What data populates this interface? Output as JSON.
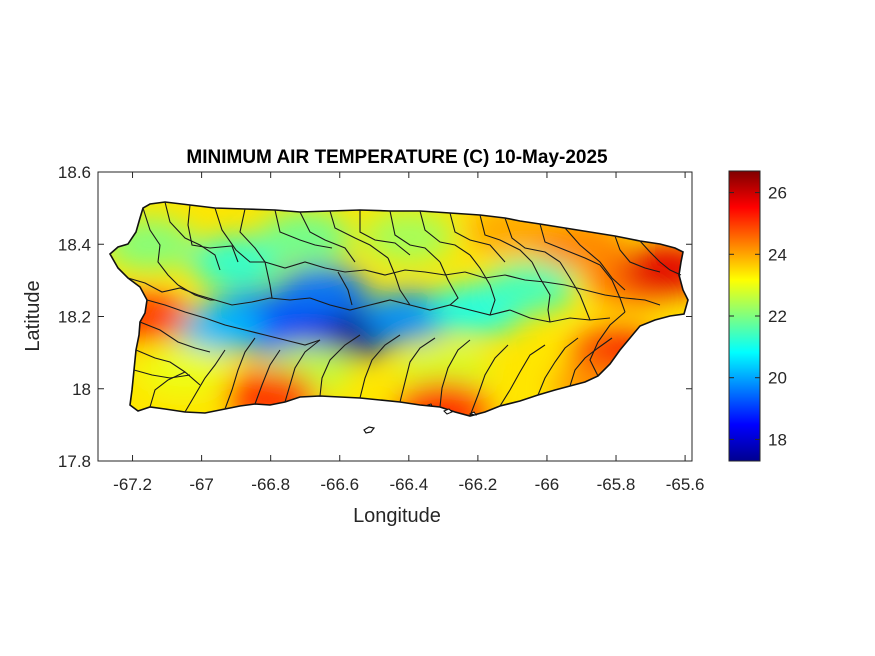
{
  "chart_data": {
    "type": "heatmap",
    "title": "MINIMUM AIR TEMPERATURE (C) 10-May-2025",
    "xlabel": "Longitude",
    "ylabel": "Latitude",
    "xlim": [
      -67.3,
      -65.58
    ],
    "ylim": [
      17.8,
      18.6
    ],
    "x_ticks": [
      "-67.2",
      "-67",
      "-66.8",
      "-66.6",
      "-66.4",
      "-66.2",
      "-66",
      "-65.8",
      "-65.6"
    ],
    "y_ticks": [
      "18.6",
      "18.4",
      "18.2",
      "18",
      "17.8"
    ],
    "colorbar": {
      "colormap": "jet",
      "range": [
        17.3,
        26.7
      ],
      "ticks": [
        "26",
        "24",
        "22",
        "20",
        "18"
      ]
    },
    "grid": false,
    "region": "Puerto Rico municipalities",
    "temperature_samples": [
      {
        "lon": -66.55,
        "lat": 18.16,
        "value": 17.5
      },
      {
        "lon": -66.75,
        "lat": 18.15,
        "value": 18.3
      },
      {
        "lon": -66.85,
        "lat": 18.2,
        "value": 19.3
      },
      {
        "lon": -66.4,
        "lat": 18.2,
        "value": 19.8
      },
      {
        "lon": -66.65,
        "lat": 18.27,
        "value": 19.5
      },
      {
        "lon": -66.95,
        "lat": 18.17,
        "value": 20.2
      },
      {
        "lon": -66.2,
        "lat": 18.22,
        "value": 21.0
      },
      {
        "lon": -66.05,
        "lat": 18.28,
        "value": 21.4
      },
      {
        "lon": -66.9,
        "lat": 18.35,
        "value": 21.2
      },
      {
        "lon": -67.15,
        "lat": 18.4,
        "value": 22.0
      },
      {
        "lon": -66.7,
        "lat": 18.42,
        "value": 21.8
      },
      {
        "lon": -66.4,
        "lat": 18.42,
        "value": 22.3
      },
      {
        "lon": -66.7,
        "lat": 18.05,
        "value": 22.6
      },
      {
        "lon": -66.3,
        "lat": 18.05,
        "value": 22.8
      },
      {
        "lon": -67.05,
        "lat": 18.05,
        "value": 23.0
      },
      {
        "lon": -66.1,
        "lat": 18.44,
        "value": 24.0
      },
      {
        "lon": -65.9,
        "lat": 18.4,
        "value": 24.3
      },
      {
        "lon": -65.75,
        "lat": 18.3,
        "value": 24.5
      },
      {
        "lon": -65.8,
        "lat": 18.1,
        "value": 24.5
      },
      {
        "lon": -67.17,
        "lat": 18.2,
        "value": 25.0
      },
      {
        "lon": -66.8,
        "lat": 17.98,
        "value": 25.2
      },
      {
        "lon": -66.3,
        "lat": 17.95,
        "value": 25.4
      },
      {
        "lon": -65.65,
        "lat": 18.33,
        "value": 25.8
      },
      {
        "lon": -65.78,
        "lat": 18.08,
        "value": 25.6
      },
      {
        "lon": -65.85,
        "lat": 18.0,
        "value": 24.2
      }
    ]
  }
}
